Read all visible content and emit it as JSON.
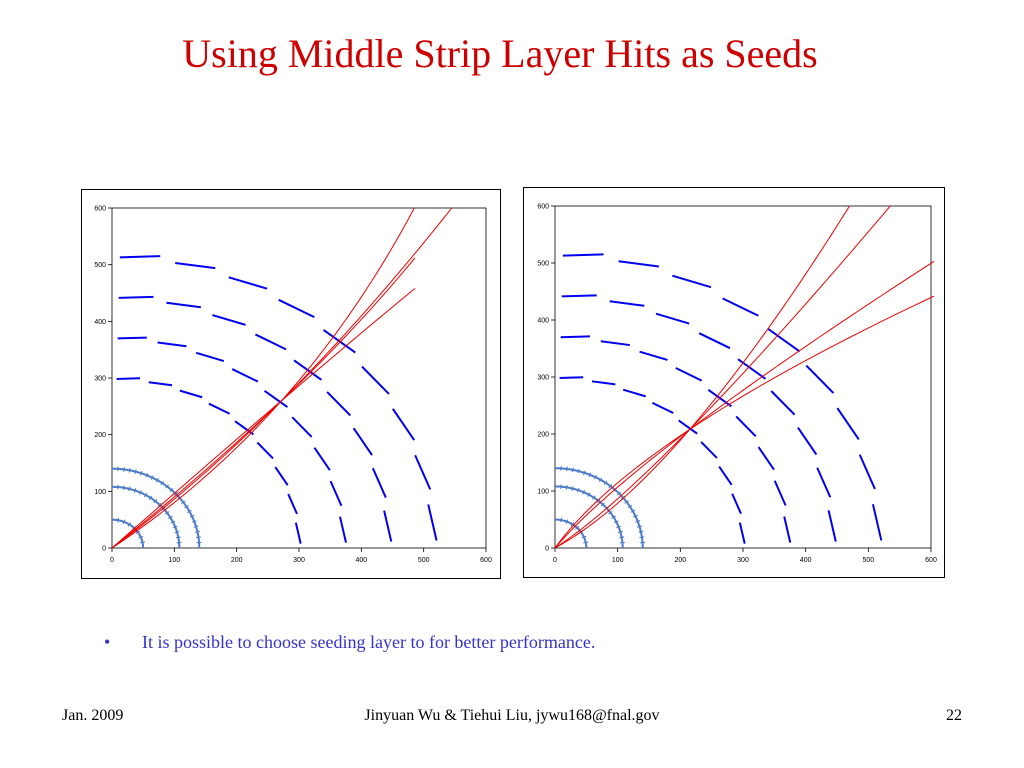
{
  "slide": {
    "title": "Using Middle Strip Layer Hits as Seeds",
    "bullet_mark": "•",
    "bullet": "It is possible to choose seeding layer to for better performance.",
    "footer_date": "Jan. 2009",
    "footer_authors": "Jinyuan Wu & Tiehui Liu, jywu168@fnal.gov",
    "page_number": "22"
  },
  "colors": {
    "title": "#cc0000",
    "bullet_text": "#3333cc",
    "strip_segments": "#0000ee",
    "pixel_rings": "#4a7ac8",
    "tracks": "#ee0000"
  },
  "chart_data": [
    {
      "type": "scatter",
      "title": "",
      "xlabel": "",
      "ylabel": "",
      "xlim": [
        0,
        600
      ],
      "ylim": [
        0,
        600
      ],
      "x_ticks": [
        "0",
        "100",
        "200",
        "300",
        "400",
        "500",
        "600"
      ],
      "y_ticks": [
        "0",
        "100",
        "200",
        "300",
        "400",
        "500",
        "600"
      ],
      "grid": false,
      "legend": "none",
      "pixel_layer_radii": [
        50,
        108,
        140
      ],
      "strip_layer_radii": [
        300,
        372,
        444,
        516
      ],
      "seed_point": [
        272,
        260
      ],
      "tracks": [
        {
          "end": [
            486,
            458
          ]
        },
        {
          "end": [
            486,
            512
          ]
        },
        {
          "end": [
            545,
            600
          ]
        },
        {
          "end": [
            485,
            600
          ]
        }
      ]
    },
    {
      "type": "scatter",
      "title": "",
      "xlabel": "",
      "ylabel": "",
      "xlim": [
        0,
        600
      ],
      "ylim": [
        0,
        600
      ],
      "x_ticks": [
        "0",
        "100",
        "200",
        "300",
        "400",
        "500",
        "600"
      ],
      "y_ticks": [
        "0",
        "100",
        "200",
        "300",
        "400",
        "500",
        "600"
      ],
      "grid": false,
      "legend": "none",
      "pixel_layer_radii": [
        50,
        108,
        140
      ],
      "strip_layer_radii": [
        300,
        372,
        444,
        516
      ],
      "seed_point": [
        215,
        208
      ],
      "tracks": [
        {
          "end": [
            605,
            442
          ]
        },
        {
          "end": [
            605,
            503
          ]
        },
        {
          "end": [
            535,
            600
          ]
        },
        {
          "end": [
            470,
            600
          ]
        }
      ]
    }
  ]
}
